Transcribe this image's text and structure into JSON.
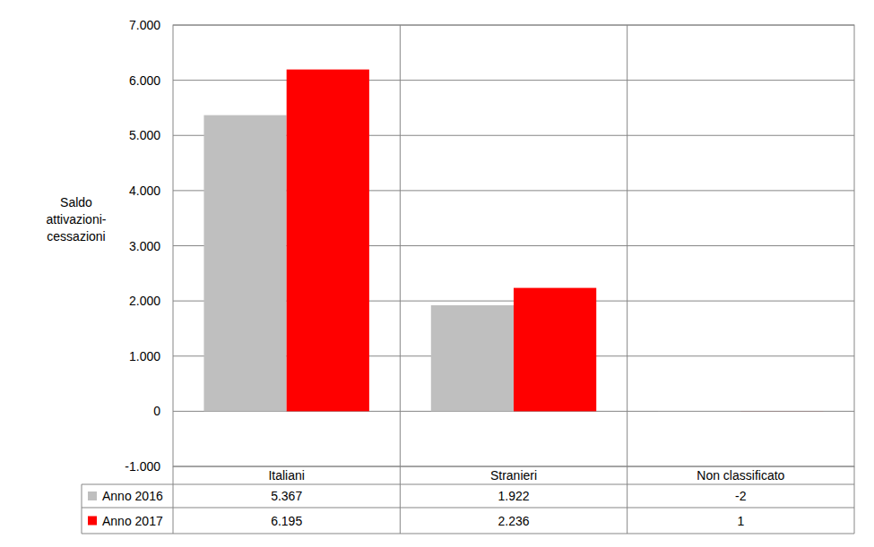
{
  "chart_data": {
    "type": "bar",
    "y_label": "Saldo attivazioni-cessazioni",
    "categories": [
      "Italiani",
      "Stranieri",
      "Non classificato"
    ],
    "series": [
      {
        "name": "Anno 2016",
        "color": "#bfbfbf",
        "values": [
          5367,
          1922,
          -2
        ],
        "value_labels": [
          "5.367",
          "1.922",
          "-2"
        ]
      },
      {
        "name": "Anno 2017",
        "color": "#ff0000",
        "values": [
          6195,
          2236,
          1
        ],
        "value_labels": [
          "6.195",
          "2.236",
          "1"
        ]
      }
    ],
    "ylim": [
      -1000,
      7000
    ],
    "yticks": [
      {
        "value": -1000,
        "label": "-1.000"
      },
      0,
      {
        "value": 1000,
        "label": "1.000"
      },
      {
        "value": 2000,
        "label": "2.000"
      },
      {
        "value": 3000,
        "label": "3.000"
      },
      {
        "value": 4000,
        "label": "4.000"
      },
      {
        "value": 5000,
        "label": "5.000"
      },
      {
        "value": 6000,
        "label": "6.000"
      },
      {
        "value": 7000,
        "label": "7.000"
      }
    ],
    "grid": true
  }
}
